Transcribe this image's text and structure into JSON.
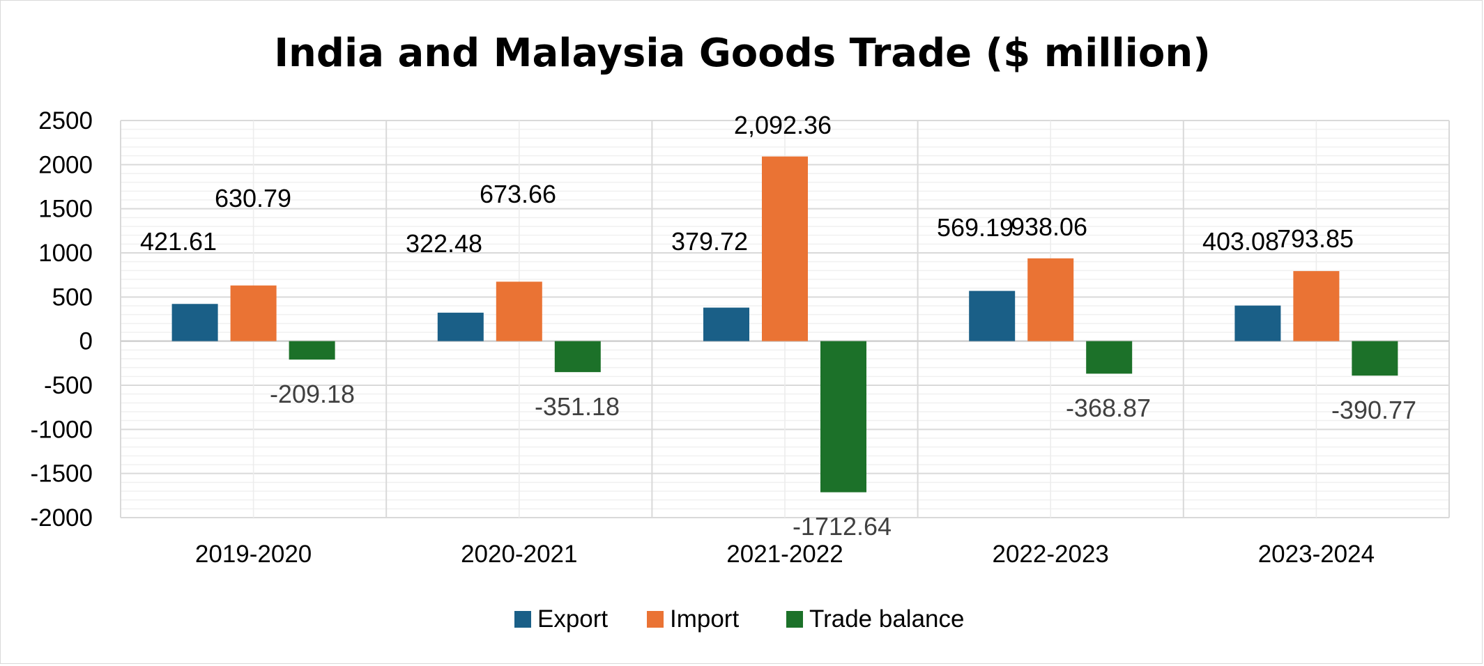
{
  "chart_data": {
    "type": "bar",
    "title": "India and Malaysia Goods Trade ($ million)",
    "categories": [
      "2019-2020",
      "2020-2021",
      "2021-2022",
      "2022-2023",
      "2023-2024"
    ],
    "series": [
      {
        "name": "Export",
        "color": "#1a5f87",
        "values": [
          421.61,
          322.48,
          379.72,
          569.19,
          403.08
        ],
        "labels": [
          "421.61",
          "322.48",
          "379.72",
          "569.19",
          "403.08"
        ]
      },
      {
        "name": "Import",
        "color": "#ea7334",
        "values": [
          630.79,
          673.66,
          2092.36,
          938.06,
          793.85
        ],
        "labels": [
          "630.79",
          "673.66",
          "2,092.36",
          "938.06",
          "793.85"
        ]
      },
      {
        "name": "Trade balance",
        "color": "#1c7129",
        "values": [
          -209.18,
          -351.18,
          -1712.64,
          -368.87,
          -390.77
        ],
        "labels": [
          "-209.18",
          "-351.18",
          "-1712.64",
          "-368.87",
          "-390.77"
        ]
      }
    ],
    "ylim": [
      -2000,
      2500
    ],
    "yticks": [
      "2500",
      "2000",
      "1500",
      "1000",
      "500",
      "0",
      "-500",
      "-1000",
      "-1500",
      "-2000"
    ],
    "legend_position": "bottom",
    "grid": true
  }
}
